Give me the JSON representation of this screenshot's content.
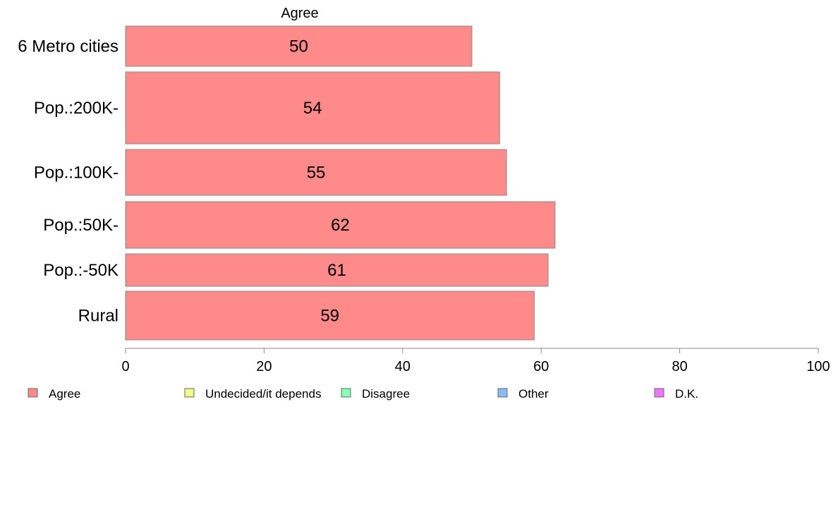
{
  "chart_data": {
    "type": "bar",
    "orientation": "horizontal",
    "panel_title": "Agree",
    "categories": [
      "6 Metro cities",
      "Pop.:200K-",
      "Pop.:100K-",
      "Pop.:50K-",
      "Pop.:-50K",
      "Rural"
    ],
    "series": [
      {
        "name": "Agree",
        "values": [
          50,
          54,
          55,
          62,
          61,
          59
        ]
      }
    ],
    "x_ticks": [
      "0",
      "20",
      "40",
      "60",
      "80",
      "100"
    ],
    "xlim": [
      0,
      100
    ],
    "grid": false,
    "legend_position": "bottom",
    "legend": [
      {
        "label": "Agree",
        "color": "#ff8a8a"
      },
      {
        "label": "Undecided/it depends",
        "color": "#eeff88"
      },
      {
        "label": "Disagree",
        "color": "#88ffbb"
      },
      {
        "label": "Other",
        "color": "#88bbff"
      },
      {
        "label": "D.K.",
        "color": "#ee77ff"
      }
    ],
    "bar_color": "#ff8a8a",
    "bar_stroke": "#888888"
  }
}
